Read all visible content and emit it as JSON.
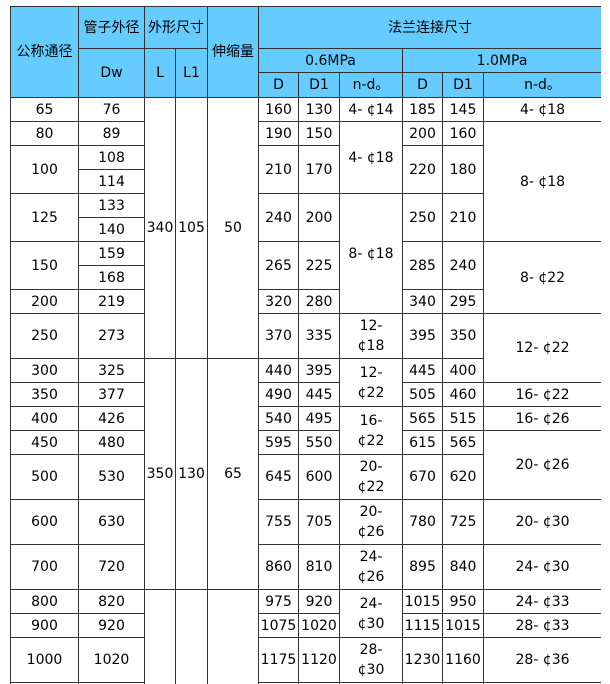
{
  "header": {
    "nominal_diameter": "公称通径",
    "pipe_od": "管子外径",
    "dw": "Dw",
    "outline_size": "外形尺寸",
    "l": "L",
    "l1": "L1",
    "expansion": "伸缩量",
    "flange_size": "法兰连接尺寸",
    "p06": "0.6MPa",
    "p10": "1.0MPa",
    "d": "D",
    "d1": "D1",
    "nd": "n-d。"
  },
  "colors": {
    "header_bg": "#66ccff",
    "border": "#333333"
  },
  "rows": [
    {
      "tall": false,
      "cells": [
        {
          "t": "65"
        },
        {
          "t": "76"
        },
        {
          "t": "340",
          "rs": 10
        },
        {
          "t": "105",
          "rs": 10
        },
        {
          "t": "50",
          "rs": 10
        },
        {
          "t": "160"
        },
        {
          "t": "130"
        },
        {
          "t": "4- ¢14"
        },
        {
          "t": "185"
        },
        {
          "t": "145"
        },
        {
          "t": "4- ¢18"
        }
      ]
    },
    {
      "tall": false,
      "cells": [
        {
          "t": "80"
        },
        {
          "t": "89"
        },
        {
          "t": "190"
        },
        {
          "t": "150"
        },
        {
          "t": "4- ¢18",
          "rs": 3
        },
        {
          "t": "200"
        },
        {
          "t": "160"
        },
        {
          "t": "8- ¢18",
          "rs": 5
        }
      ]
    },
    {
      "tall": false,
      "cells": [
        {
          "t": "100",
          "rs": 2
        },
        {
          "t": "108"
        },
        {
          "t": "210",
          "rs": 2
        },
        {
          "t": "170",
          "rs": 2
        },
        {
          "t": "220",
          "rs": 2
        },
        {
          "t": "180",
          "rs": 2
        }
      ]
    },
    {
      "tall": false,
      "cells": [
        {
          "t": "114"
        }
      ]
    },
    {
      "tall": false,
      "cells": [
        {
          "t": "125",
          "rs": 2
        },
        {
          "t": "133"
        },
        {
          "t": "240",
          "rs": 2
        },
        {
          "t": "200",
          "rs": 2
        },
        {
          "t": "8- ¢18",
          "rs": 5
        },
        {
          "t": "250",
          "rs": 2
        },
        {
          "t": "210",
          "rs": 2
        }
      ]
    },
    {
      "tall": false,
      "cells": [
        {
          "t": "140"
        }
      ]
    },
    {
      "tall": false,
      "cells": [
        {
          "t": "150",
          "rs": 2
        },
        {
          "t": "159"
        },
        {
          "t": "265",
          "rs": 2
        },
        {
          "t": "225",
          "rs": 2
        },
        {
          "t": "285",
          "rs": 2
        },
        {
          "t": "240",
          "rs": 2
        },
        {
          "t": "8- ¢22",
          "rs": 3
        }
      ]
    },
    {
      "tall": false,
      "cells": [
        {
          "t": "168"
        }
      ]
    },
    {
      "tall": false,
      "cells": [
        {
          "t": "200"
        },
        {
          "t": "219"
        },
        {
          "t": "320"
        },
        {
          "t": "280"
        },
        {
          "t": "340"
        },
        {
          "t": "295"
        }
      ]
    },
    {
      "tall": true,
      "cells": [
        {
          "t": "250"
        },
        {
          "t": "273"
        },
        {
          "t": "370"
        },
        {
          "t": "335"
        },
        {
          "t": "12-\n¢18"
        },
        {
          "t": "395"
        },
        {
          "t": "350"
        },
        {
          "t": "12- ¢22",
          "rs": 2
        }
      ]
    },
    {
      "tall": false,
      "cells": [
        {
          "t": "300"
        },
        {
          "t": "325"
        },
        {
          "t": "350",
          "rs": 7
        },
        {
          "t": "130",
          "rs": 7
        },
        {
          "t": "65",
          "rs": 7
        },
        {
          "t": "440"
        },
        {
          "t": "395"
        },
        {
          "t": "12-\n¢22",
          "rs": 2
        },
        {
          "t": "445"
        },
        {
          "t": "400"
        }
      ]
    },
    {
      "tall": false,
      "cells": [
        {
          "t": "350"
        },
        {
          "t": "377"
        },
        {
          "t": "490"
        },
        {
          "t": "445"
        },
        {
          "t": "505"
        },
        {
          "t": "460"
        },
        {
          "t": "16- ¢22"
        }
      ]
    },
    {
      "tall": false,
      "cells": [
        {
          "t": "400"
        },
        {
          "t": "426"
        },
        {
          "t": "540"
        },
        {
          "t": "495"
        },
        {
          "t": "16-\n¢22",
          "rs": 2
        },
        {
          "t": "565"
        },
        {
          "t": "515"
        },
        {
          "t": "16- ¢26"
        }
      ]
    },
    {
      "tall": false,
      "cells": [
        {
          "t": "450"
        },
        {
          "t": "480"
        },
        {
          "t": "595"
        },
        {
          "t": "550"
        },
        {
          "t": "615"
        },
        {
          "t": "565"
        },
        {
          "t": "20- ¢26",
          "rs": 2
        }
      ]
    },
    {
      "tall": true,
      "cells": [
        {
          "t": "500"
        },
        {
          "t": "530"
        },
        {
          "t": "645"
        },
        {
          "t": "600"
        },
        {
          "t": "20-\n¢22"
        },
        {
          "t": "670"
        },
        {
          "t": "620"
        }
      ]
    },
    {
      "tall": true,
      "cells": [
        {
          "t": "600"
        },
        {
          "t": "630"
        },
        {
          "t": "755"
        },
        {
          "t": "705"
        },
        {
          "t": "20-\n¢26"
        },
        {
          "t": "780"
        },
        {
          "t": "725"
        },
        {
          "t": "20- ¢30"
        }
      ]
    },
    {
      "tall": true,
      "cells": [
        {
          "t": "700"
        },
        {
          "t": "720"
        },
        {
          "t": "860"
        },
        {
          "t": "810"
        },
        {
          "t": "24-\n¢26"
        },
        {
          "t": "895"
        },
        {
          "t": "840"
        },
        {
          "t": "24- ¢30"
        }
      ]
    },
    {
      "tall": false,
      "cells": [
        {
          "t": "800"
        },
        {
          "t": "820"
        },
        {
          "t": "",
          "rs": 4
        },
        {
          "t": "",
          "rs": 4
        },
        {
          "t": "",
          "rs": 4
        },
        {
          "t": "975"
        },
        {
          "t": "920"
        },
        {
          "t": "24-\n¢30",
          "rs": 2
        },
        {
          "t": "1015"
        },
        {
          "t": "950"
        },
        {
          "t": "24- ¢33"
        }
      ]
    },
    {
      "tall": false,
      "cells": [
        {
          "t": "900"
        },
        {
          "t": "920"
        },
        {
          "t": "1075"
        },
        {
          "t": "1020"
        },
        {
          "t": "1115"
        },
        {
          "t": "1015"
        },
        {
          "t": "28- ¢33"
        }
      ]
    },
    {
      "tall": true,
      "cells": [
        {
          "t": "1000"
        },
        {
          "t": "1020"
        },
        {
          "t": "1175"
        },
        {
          "t": "1120"
        },
        {
          "t": "28-\n¢30"
        },
        {
          "t": "1230"
        },
        {
          "t": "1160"
        },
        {
          "t": "28- ¢36"
        }
      ]
    },
    {
      "tall": false,
      "cells": [
        {
          "t": ""
        },
        {
          "t": ""
        },
        {
          "t": ""
        },
        {
          "t": ""
        },
        {
          "t": ""
        },
        {
          "t": ""
        },
        {
          "t": ""
        },
        {
          "t": ""
        }
      ]
    }
  ]
}
